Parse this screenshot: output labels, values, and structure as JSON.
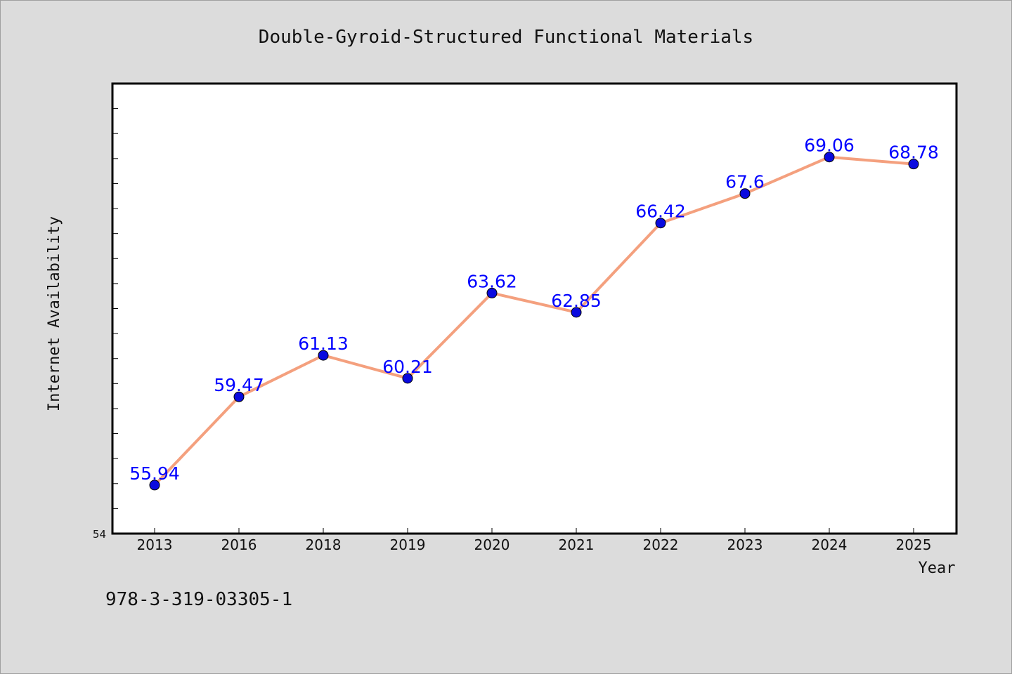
{
  "chart_data": {
    "type": "line",
    "title": "Double-Gyroid-Structured Functional Materials",
    "xlabel": "Year",
    "ylabel": "Internet Availability",
    "categories": [
      "2013",
      "2016",
      "2018",
      "2019",
      "2020",
      "2021",
      "2022",
      "2023",
      "2024",
      "2025"
    ],
    "series": [
      {
        "values": [
          55.94,
          59.47,
          61.13,
          60.21,
          63.62,
          62.85,
          66.42,
          67.6,
          69.06,
          68.78
        ],
        "labels": [
          "55.94",
          "59.47",
          "61.13",
          "60.21",
          "63.62",
          "62.85",
          "66.42",
          "67.6",
          "69.06",
          "68.78"
        ]
      }
    ],
    "ylim": [
      54,
      72
    ],
    "y_min_label": "54",
    "grid": false,
    "line_color": "#f4a07e",
    "marker_color": "#0a0adf",
    "label_color": "#0000ff"
  },
  "footer": {
    "isbn": "978-3-319-03305-1"
  }
}
